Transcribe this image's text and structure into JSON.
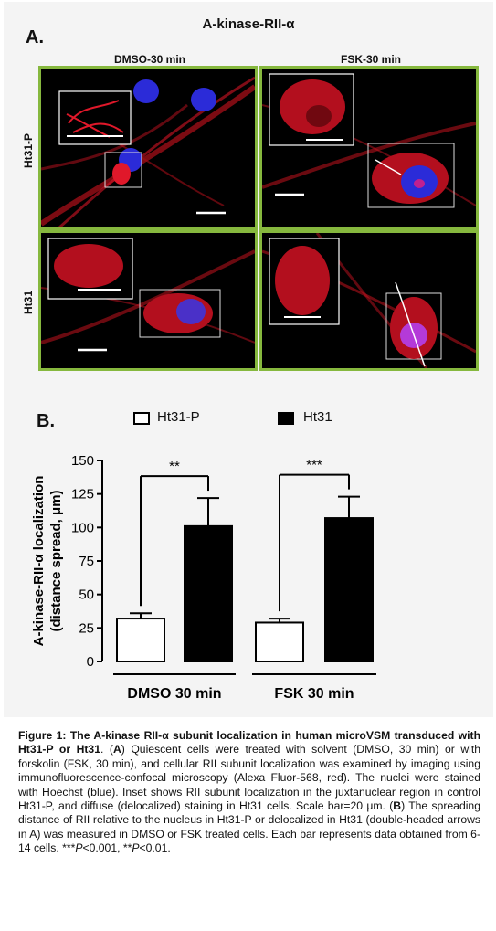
{
  "panel_a": {
    "letter": "A.",
    "title": "A-kinase-RII-α",
    "columns": [
      "DMSO-30 min",
      "FSK-30 min"
    ],
    "rows": [
      "Ht31-P",
      "Ht31"
    ]
  },
  "panel_b": {
    "letter": "B.",
    "legend": [
      "Ht31-P",
      "Ht31"
    ],
    "significance": [
      "**",
      "***"
    ]
  },
  "chart_data": {
    "type": "bar",
    "categories": [
      "DMSO 30 min",
      "FSK 30 min"
    ],
    "series": [
      {
        "name": "Ht31-P",
        "values": [
          32,
          29
        ],
        "errors": [
          4,
          3
        ],
        "fill": "#ffffff"
      },
      {
        "name": "Ht31",
        "values": [
          101,
          107
        ],
        "errors": [
          21,
          16
        ],
        "fill": "#000000"
      }
    ],
    "ylabel": "A-kinase-RII-α localization (distance spread, μm)",
    "ylim": [
      0,
      150
    ],
    "yticks": [
      "0",
      "25",
      "50",
      "75",
      "100",
      "125",
      "150"
    ],
    "grid": false
  },
  "caption": {
    "figure_label": "Figure 1:",
    "title_part1": "The A-kinase RII-α subunit localization in human microVSM transduced with Ht31-P or Ht31",
    "text_a_label": "A",
    "text_a": "Quiescent cells were treated with solvent (DMSO, 30 min) or with forskolin (FSK, 30 min), and cellular RII subunit localization was examined by imaging using immunofluorescence-confocal microscopy (Alexa Fluor-568, red). The nuclei were stained with Hoechst (blue). Inset shows RII subunit localization in the juxtanuclear region in control Ht31-P, and diffuse (delocalized) staining in Ht31 cells. Scale bar=20 μm.",
    "text_b_label": "B",
    "text_b": "The spreading distance of RII relative to the nucleus in Ht31-P or delocalized in Ht31 (double-headed arrows in A) was measured in DMSO or FSK treated cells. Each bar represents data obtained from 6-14 cells.",
    "p1_stars": "***",
    "p1_sym": "P",
    "p1_val": "<0.001, ",
    "p2_stars": "**",
    "p2_sym": "P",
    "p2_val": "<0.01."
  }
}
